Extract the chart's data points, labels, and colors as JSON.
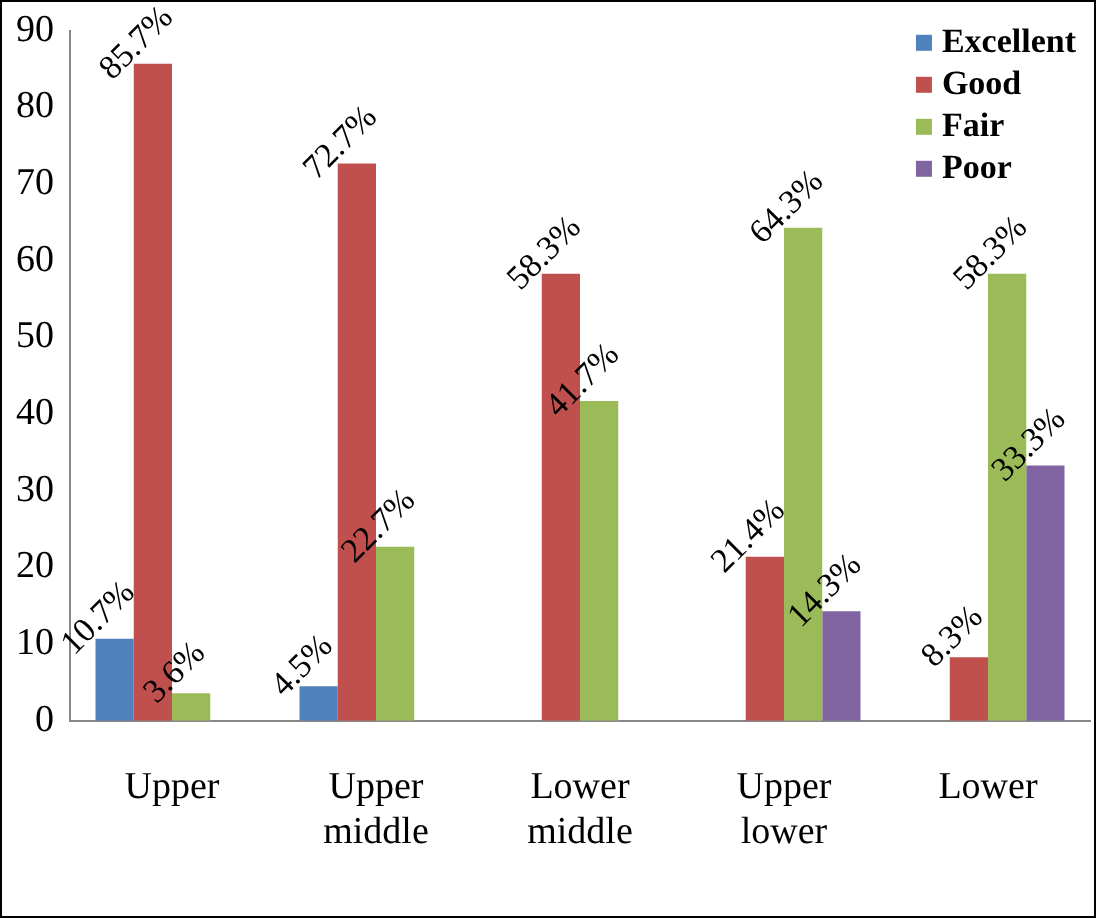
{
  "chart_data": {
    "type": "bar",
    "categories": [
      "Upper",
      "Upper middle",
      "Lower middle",
      "Upper lower",
      "Lower"
    ],
    "series": [
      {
        "name": "Excellent",
        "color": "#4f81bd",
        "values": [
          10.7,
          4.5,
          null,
          null,
          null
        ],
        "value_labels": [
          "10.7%",
          "4.5%",
          null,
          null,
          null
        ]
      },
      {
        "name": "Good",
        "color": "#c0504d",
        "values": [
          85.7,
          72.7,
          58.3,
          21.4,
          8.3
        ],
        "value_labels": [
          "85.7%",
          "72.7%",
          "58.3%",
          "21.4%",
          "8.3%"
        ]
      },
      {
        "name": "Fair",
        "color": "#9bbb59",
        "values": [
          3.6,
          22.7,
          41.7,
          64.3,
          58.3
        ],
        "value_labels": [
          "3.6%",
          "22.7%",
          "41.7%",
          "64.3%",
          "58.3%"
        ]
      },
      {
        "name": "Poor",
        "color": "#8064a2",
        "values": [
          null,
          null,
          null,
          14.3,
          33.3
        ],
        "value_labels": [
          null,
          null,
          null,
          "14.3%",
          "33.3%"
        ]
      }
    ],
    "ylim": [
      0,
      90
    ],
    "yticks": [
      0,
      10,
      20,
      30,
      40,
      50,
      60,
      70,
      80,
      90
    ],
    "grid": false,
    "legend": "top right"
  }
}
